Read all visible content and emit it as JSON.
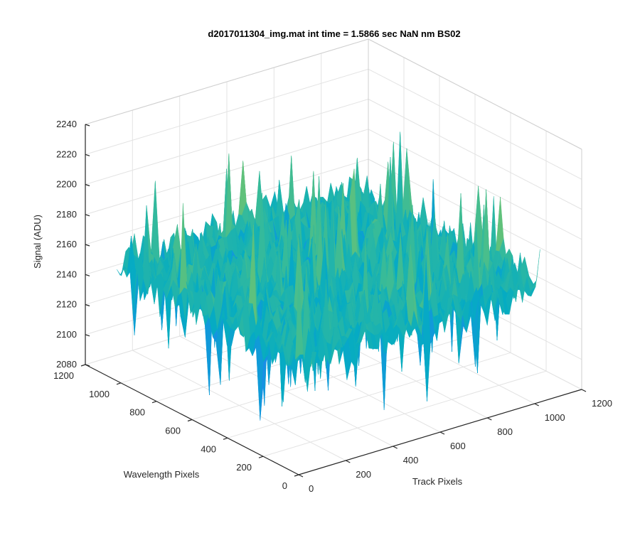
{
  "chart_data": {
    "type": "surface",
    "title": "d2017011304_img.mat int time = 1.5866 sec  NaN nm BS02",
    "xlabel": "Track Pixels",
    "ylabel": "Wavelength Pixels",
    "zlabel": "Signal (ADU)",
    "xlim": [
      0,
      1200
    ],
    "ylim": [
      0,
      1200
    ],
    "zlim": [
      2080,
      2240
    ],
    "x_ticks": [
      0,
      200,
      400,
      600,
      800,
      1000,
      1200
    ],
    "y_ticks": [
      0,
      200,
      400,
      600,
      800,
      1000,
      1200
    ],
    "z_ticks": [
      2080,
      2100,
      2120,
      2140,
      2160,
      2180,
      2200,
      2220,
      2240
    ],
    "x_tick_labels": [
      "0",
      "200",
      "400",
      "600",
      "800",
      "1000",
      "1200"
    ],
    "y_tick_labels": [
      "0",
      "200",
      "400",
      "600",
      "800",
      "1000",
      "1200"
    ],
    "z_tick_labels": [
      "2080",
      "2100",
      "2120",
      "2140",
      "2160",
      "2180",
      "2200",
      "2220",
      "2240"
    ],
    "data_extent": {
      "x": [
        1,
        1024
      ],
      "y": [
        1,
        1024
      ]
    },
    "signal_mean": 2157,
    "signal_min": 2095,
    "signal_max": 2225,
    "grid": true,
    "colormap": "parula"
  }
}
